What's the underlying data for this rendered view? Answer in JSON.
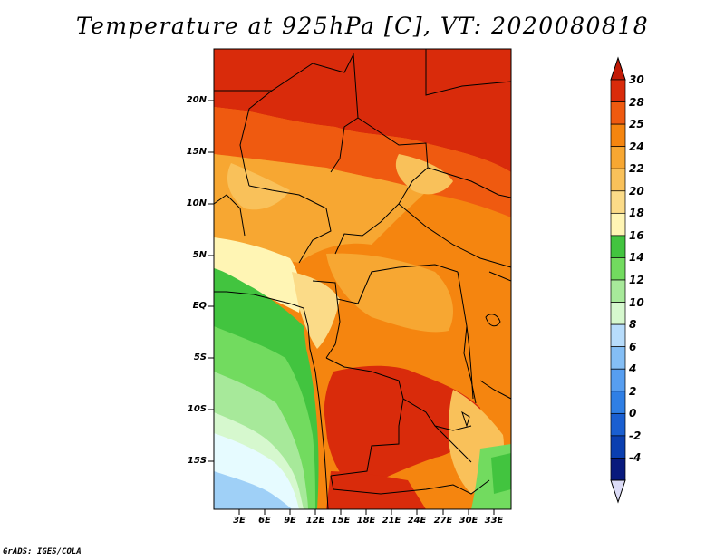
{
  "title": "Temperature at 925hPa [C], VT: 2020080818",
  "credit": "GrADS: IGES/COLA",
  "lat_labels": [
    "20N",
    "15N",
    "10N",
    "5N",
    "EQ",
    "5S",
    "10S",
    "15S"
  ],
  "lon_labels": [
    "3E",
    "6E",
    "9E",
    "12E",
    "15E",
    "18E",
    "21E",
    "24E",
    "27E",
    "30E",
    "33E"
  ],
  "colorbar": {
    "labels": [
      "30",
      "28",
      "25",
      "24",
      "22",
      "20",
      "18",
      "16",
      "14",
      "12",
      "10",
      "8",
      "6",
      "4",
      "2",
      "0",
      "-2",
      "-4"
    ],
    "colors": [
      "#d92b0b",
      "#ef5a10",
      "#f5850f",
      "#f7a732",
      "#f9c15a",
      "#fbdb88",
      "#fff5b4",
      "#42c43f",
      "#72db5f",
      "#a7e99a",
      "#d6f8ce",
      "#b7dcfb",
      "#84bef5",
      "#579ef0",
      "#2f7fe5",
      "#1a5fd1",
      "#0b3fb0",
      "#081a7d"
    ],
    "top_arrow_color": "#c21a06",
    "bottom_arrow_color": "#dcdcf7"
  },
  "map": {
    "lon_range": [
      0,
      35
    ],
    "lat_range": [
      -19,
      24
    ],
    "field_colors": {
      "hot": "#d92b0b",
      "very_warm": "#ef5a10",
      "warm": "#f5850f",
      "mild_warm": "#f7a732",
      "mild": "#f9c15a",
      "cool_mild": "#fbdb88",
      "pale": "#fff5b4",
      "green_dark": "#42c43f",
      "green": "#72db5f",
      "green_light": "#a7e99a",
      "green_pale": "#d6f8ce",
      "cyan_pale": "#e6fbff",
      "blue_light": "#9fd0f7"
    }
  }
}
